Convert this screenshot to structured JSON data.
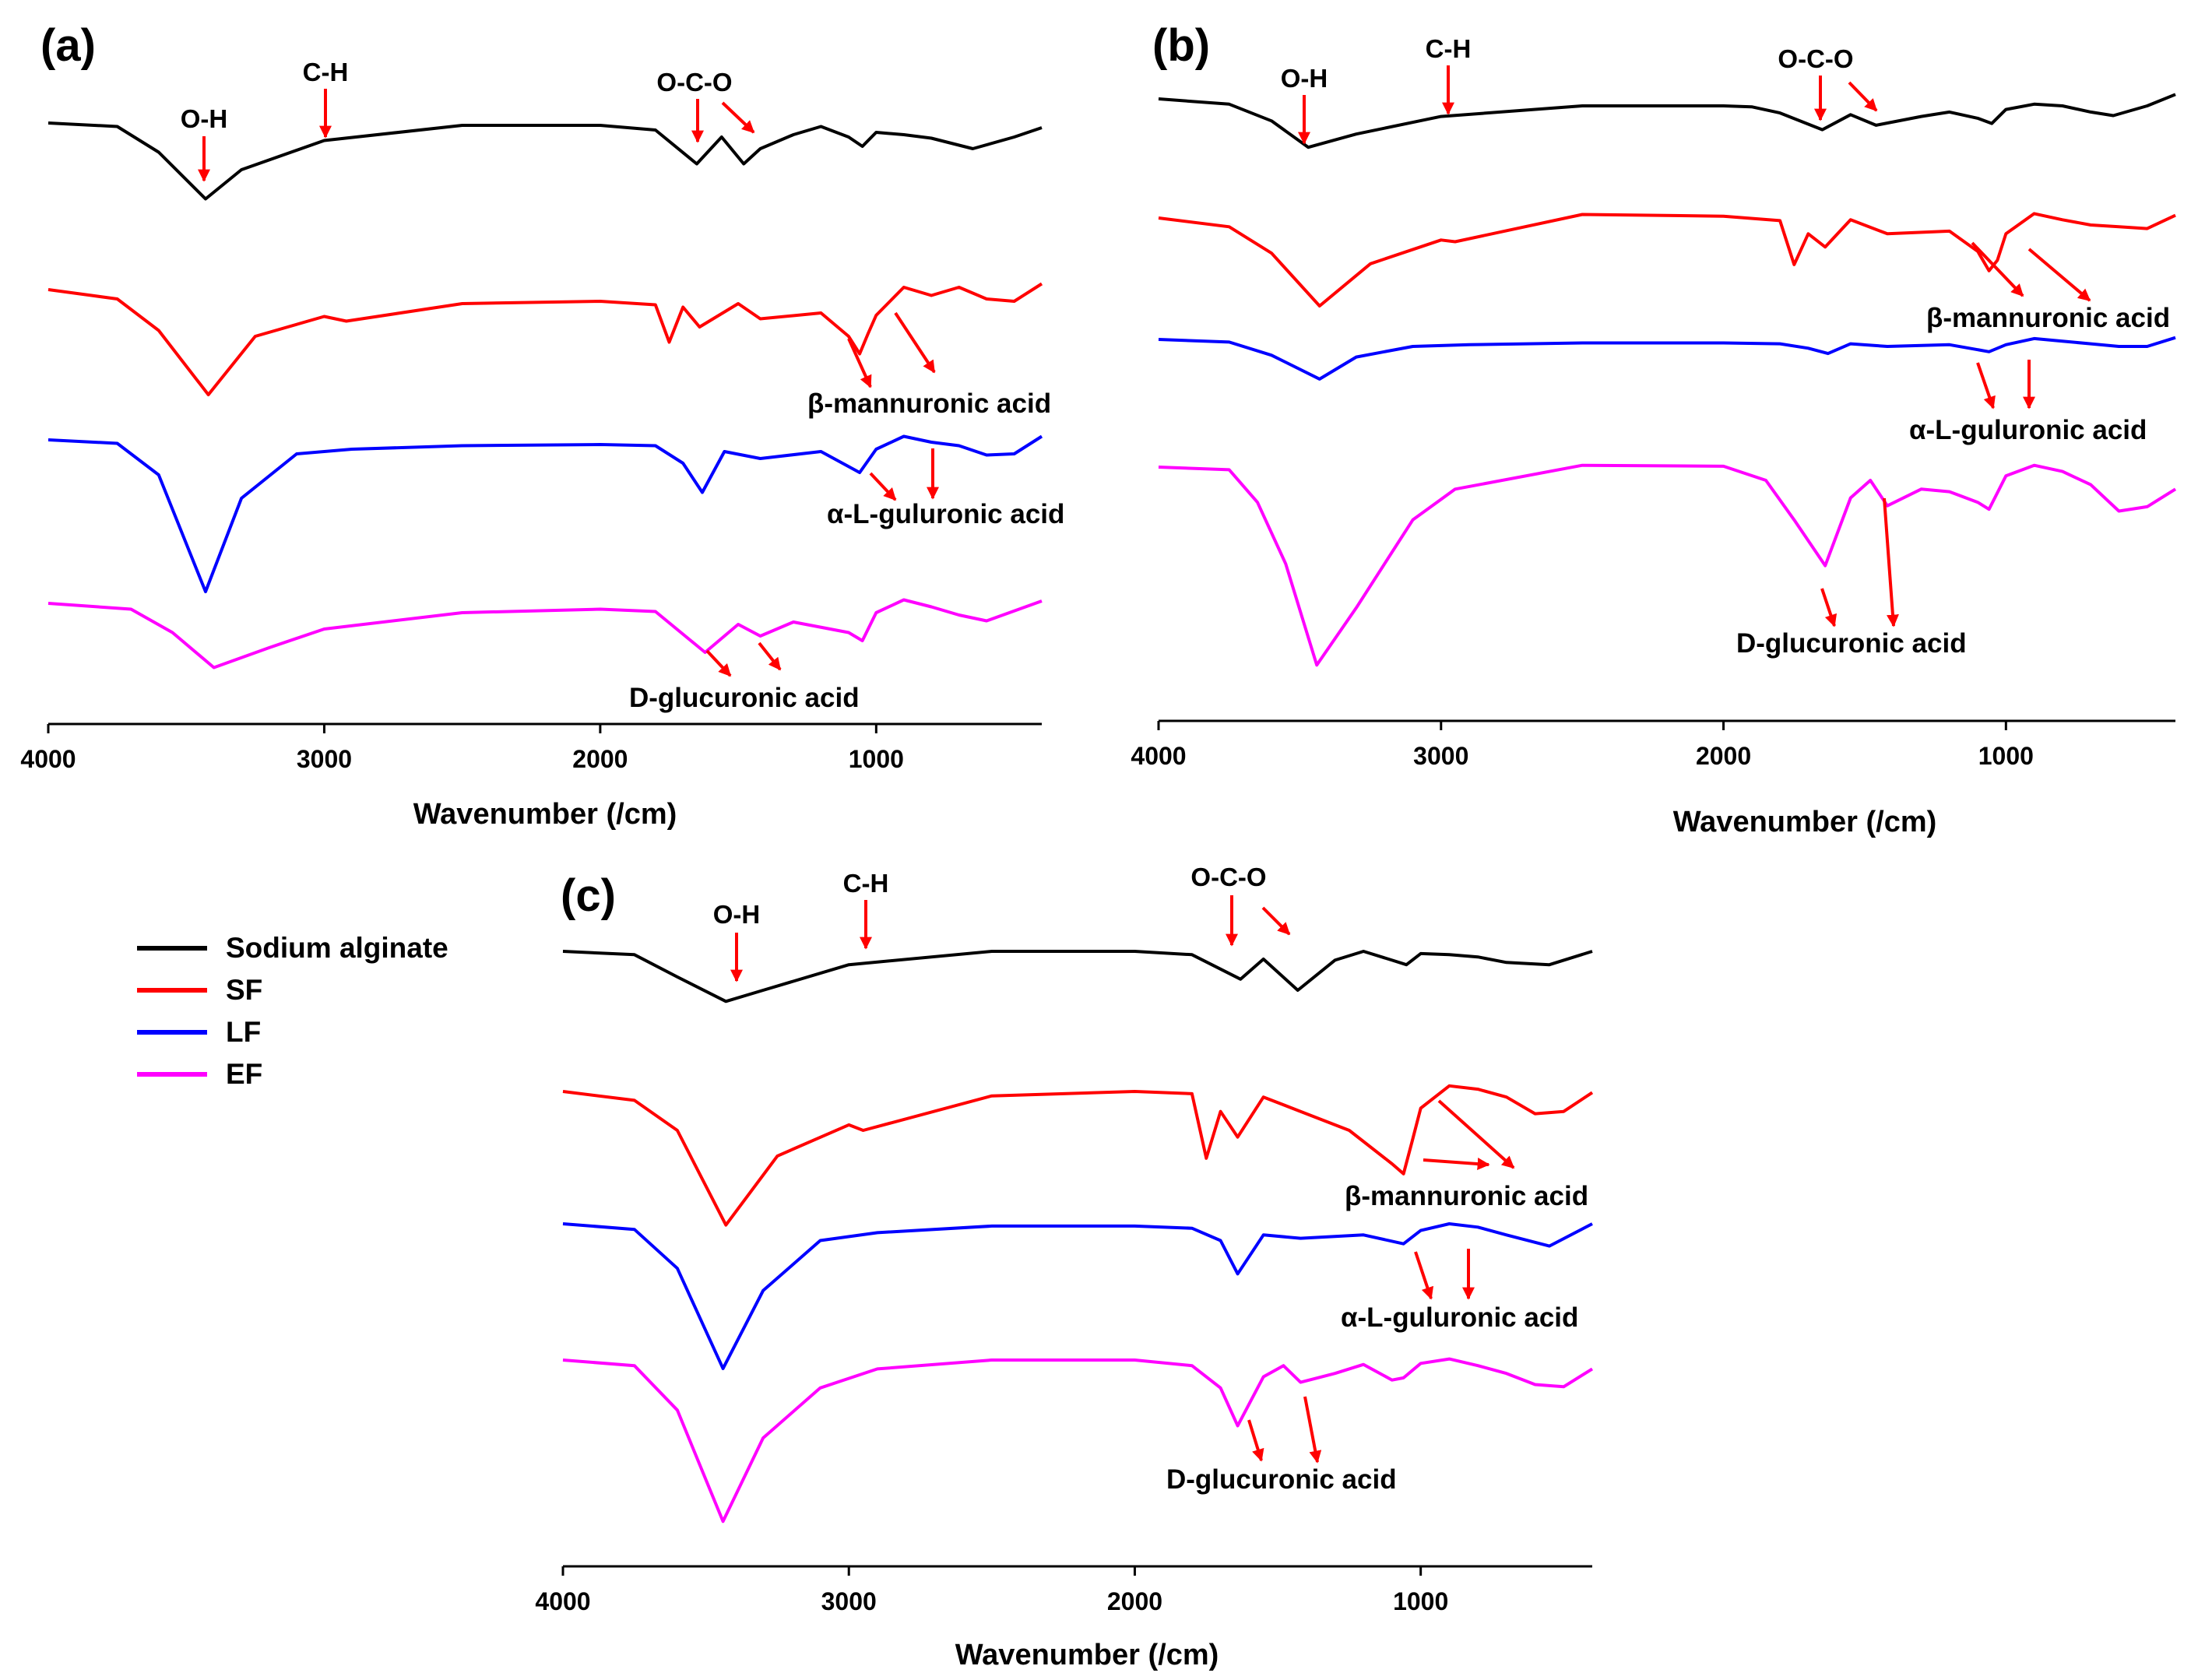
{
  "chart_data": {
    "type": "line",
    "xlabel": "Wavenumber (/cm)",
    "ylabel": "",
    "xlim": [
      4000,
      400
    ],
    "xticks": [
      "4000",
      "3000",
      "2000",
      "1000"
    ],
    "legend": [
      {
        "name": "Sodium alginate",
        "color": "#000000"
      },
      {
        "name": "SF",
        "color": "#ff0000"
      },
      {
        "name": "LF",
        "color": "#0000ff"
      },
      {
        "name": "EF",
        "color": "#ff00ff"
      }
    ],
    "panels": [
      {
        "label": "(a)",
        "bond_labels": [
          "O-H",
          "C-H",
          "O-C-O"
        ],
        "acid_labels": [
          "β-mannuronic acid",
          "α-L-guluronic acid",
          "D-glucuronic acid"
        ],
        "series": [
          {
            "name": "Sodium alginate",
            "x": [
              4000,
              3750,
              3600,
              3430,
              3300,
              3000,
              2500,
              2000,
              1800,
              1650,
              1560,
              1480,
              1420,
              1300,
              1200,
              1100,
              1050,
              1000,
              900,
              800,
              650,
              500,
              400
            ],
            "y": [
              0,
              -0.3,
              -2.5,
              -6.5,
              -4,
              -1.5,
              -0.2,
              -0.2,
              -0.6,
              -3.5,
              -1.2,
              -3.5,
              -2.2,
              -1,
              -0.3,
              -1.2,
              -2,
              -0.8,
              -1,
              -1.3,
              -2.2,
              -1.2,
              -0.4
            ]
          },
          {
            "name": "SF",
            "x": [
              4000,
              3750,
              3600,
              3420,
              3250,
              3000,
              2920,
              2500,
              2000,
              1800,
              1750,
              1700,
              1640,
              1500,
              1420,
              1200,
              1100,
              1060,
              1030,
              1000,
              900,
              800,
              700,
              600,
              500,
              400
            ],
            "y": [
              0,
              -0.8,
              -3.5,
              -9,
              -4,
              -2.3,
              -2.7,
              -1.2,
              -1,
              -1.3,
              -4.5,
              -1.5,
              -3.2,
              -1.2,
              -2.5,
              -2,
              -4,
              -5.5,
              -3.8,
              -2.2,
              0.2,
              -0.5,
              0.2,
              -0.8,
              -1,
              0.5
            ]
          },
          {
            "name": "LF",
            "x": [
              4000,
              3750,
              3600,
              3430,
              3300,
              3100,
              2900,
              2500,
              2000,
              1800,
              1700,
              1630,
              1550,
              1420,
              1200,
              1060,
              1000,
              900,
              800,
              700,
              600,
              500,
              400
            ],
            "y": [
              0,
              -0.3,
              -3,
              -13,
              -5,
              -1.2,
              -0.8,
              -0.5,
              -0.4,
              -0.5,
              -2,
              -4.5,
              -1,
              -1.6,
              -1,
              -2.8,
              -0.8,
              0.3,
              -0.2,
              -0.5,
              -1.3,
              -1.2,
              0.3
            ]
          },
          {
            "name": "EF",
            "x": [
              4000,
              3700,
              3550,
              3400,
              3200,
              3000,
              2500,
              2000,
              1800,
              1620,
              1500,
              1420,
              1300,
              1100,
              1050,
              1000,
              900,
              800,
              700,
              600,
              400
            ],
            "y": [
              0,
              -0.5,
              -2.5,
              -5.5,
              -3.8,
              -2.2,
              -0.8,
              -0.5,
              -0.7,
              -4.2,
              -1.8,
              -2.8,
              -1.6,
              -2.5,
              -3.2,
              -0.8,
              0.3,
              -0.3,
              -1,
              -1.5,
              0.2
            ]
          }
        ]
      },
      {
        "label": "(b)",
        "bond_labels": [
          "O-H",
          "C-H",
          "O-C-O"
        ],
        "acid_labels": [
          "β-mannuronic acid",
          "α-L-guluronic acid",
          "D-glucuronic acid"
        ],
        "series": [
          {
            "name": "Sodium alginate",
            "x": [
              4000,
              3750,
              3600,
              3470,
              3300,
              3000,
              2500,
              2000,
              1900,
              1800,
              1650,
              1550,
              1460,
              1300,
              1200,
              1100,
              1050,
              1000,
              900,
              800,
              700,
              620,
              500,
              400
            ],
            "y": [
              0,
              -0.6,
              -2.5,
              -5.5,
              -4,
              -2,
              -0.8,
              -0.8,
              -0.9,
              -1.6,
              -3.5,
              -1.8,
              -3,
              -2,
              -1.5,
              -2.2,
              -2.8,
              -1.2,
              -0.6,
              -0.8,
              -1.5,
              -1.9,
              -0.8,
              0.5
            ]
          },
          {
            "name": "SF",
            "x": [
              4000,
              3750,
              3600,
              3430,
              3250,
              3000,
              2950,
              2500,
              2000,
              1800,
              1750,
              1700,
              1640,
              1550,
              1420,
              1200,
              1100,
              1060,
              1030,
              1000,
              900,
              800,
              700,
              600,
              500,
              400
            ],
            "y": [
              0,
              -1,
              -4,
              -10,
              -5.2,
              -2.5,
              -2.7,
              0.4,
              0.2,
              -0.3,
              -5.3,
              -1.8,
              -3.3,
              -0.2,
              -1.8,
              -1.5,
              -3.8,
              -6,
              -4.8,
              -1.8,
              0.5,
              -0.2,
              -0.8,
              -1,
              -1.2,
              0.3
            ]
          },
          {
            "name": "LF",
            "x": [
              4000,
              3750,
              3600,
              3430,
              3300,
              3100,
              2900,
              2500,
              2000,
              1800,
              1700,
              1630,
              1550,
              1420,
              1200,
              1060,
              1000,
              900,
              800,
              700,
              600,
              500,
              400
            ],
            "y": [
              0,
              -0.3,
              -1.8,
              -4.5,
              -2,
              -0.8,
              -0.6,
              -0.4,
              -0.4,
              -0.5,
              -1,
              -1.6,
              -0.5,
              -0.8,
              -0.6,
              -1.4,
              -0.6,
              0.1,
              -0.2,
              -0.5,
              -0.8,
              -0.8,
              0.2
            ]
          },
          {
            "name": "EF",
            "x": [
              4000,
              3750,
              3650,
              3550,
              3440,
              3300,
              3100,
              2950,
              2500,
              2000,
              1850,
              1750,
              1640,
              1550,
              1480,
              1420,
              1300,
              1200,
              1100,
              1060,
              1000,
              900,
              800,
              700,
              600,
              500,
              400
            ],
            "y": [
              0,
              -0.3,
              -4,
              -11,
              -22.5,
              -16,
              -6,
              -2.5,
              0.2,
              0.1,
              -1.5,
              -6,
              -11.2,
              -3.5,
              -1.5,
              -4.4,
              -2.5,
              -2.8,
              -4,
              -4.8,
              -1,
              0.2,
              -0.5,
              -2,
              -5,
              -4.5,
              -2.5
            ]
          }
        ]
      },
      {
        "label": "(c)",
        "bond_labels": [
          "O-H",
          "C-H",
          "O-C-O"
        ],
        "acid_labels": [
          "β-mannuronic acid",
          "α-L-guluronic acid",
          "D-glucuronic acid"
        ],
        "series": [
          {
            "name": "Sodium alginate",
            "x": [
              4000,
              3750,
              3600,
              3430,
              3300,
              3000,
              2500,
              2000,
              1800,
              1630,
              1550,
              1430,
              1300,
              1200,
              1100,
              1050,
              1000,
              900,
              800,
              700,
              550,
              400
            ],
            "y": [
              0,
              -0.3,
              -2.3,
              -4.5,
              -3.5,
              -1.2,
              0,
              0,
              -0.3,
              -2.5,
              -0.7,
              -3.5,
              -0.8,
              0,
              -0.8,
              -1.2,
              -0.2,
              -0.3,
              -0.5,
              -1,
              -1.2,
              0
            ]
          },
          {
            "name": "SF",
            "x": [
              4000,
              3750,
              3600,
              3430,
              3250,
              3000,
              2950,
              2500,
              2000,
              1800,
              1750,
              1700,
              1640,
              1550,
              1420,
              1250,
              1100,
              1060,
              1030,
              1000,
              900,
              800,
              700,
              600,
              500,
              400
            ],
            "y": [
              0,
              -0.8,
              -3.5,
              -12,
              -5.8,
              -3,
              -3.5,
              -0.4,
              0,
              -0.2,
              -6,
              -1.8,
              -4.1,
              -0.5,
              -1.8,
              -3.5,
              -6.5,
              -7.4,
              -4.5,
              -1.5,
              0.5,
              0.2,
              -0.5,
              -2,
              -1.8,
              -0.1
            ]
          },
          {
            "name": "LF",
            "x": [
              4000,
              3750,
              3600,
              3440,
              3300,
              3100,
              2900,
              2500,
              2000,
              1800,
              1700,
              1640,
              1550,
              1420,
              1200,
              1060,
              1000,
              900,
              800,
              700,
              550,
              400
            ],
            "y": [
              0,
              -0.5,
              -4,
              -13,
              -6,
              -1.5,
              -0.8,
              -0.2,
              -0.2,
              -0.4,
              -1.5,
              -4.5,
              -1,
              -1.3,
              -1,
              -1.8,
              -0.6,
              0,
              -0.3,
              -1,
              -2,
              0
            ]
          },
          {
            "name": "EF",
            "x": [
              4000,
              3750,
              3600,
              3440,
              3300,
              3100,
              2900,
              2500,
              2000,
              1800,
              1700,
              1640,
              1550,
              1480,
              1420,
              1300,
              1200,
              1100,
              1060,
              1000,
              900,
              800,
              700,
              600,
              500,
              400
            ],
            "y": [
              0,
              -0.5,
              -4.5,
              -14.5,
              -7,
              -2.5,
              -0.8,
              0,
              0,
              -0.5,
              -2.5,
              -5.9,
              -1.5,
              -0.5,
              -2,
              -1.2,
              -0.4,
              -1.8,
              -1.6,
              -0.3,
              0.1,
              -0.5,
              -1.2,
              -2.2,
              -2.4,
              -0.8
            ]
          }
        ]
      }
    ]
  }
}
